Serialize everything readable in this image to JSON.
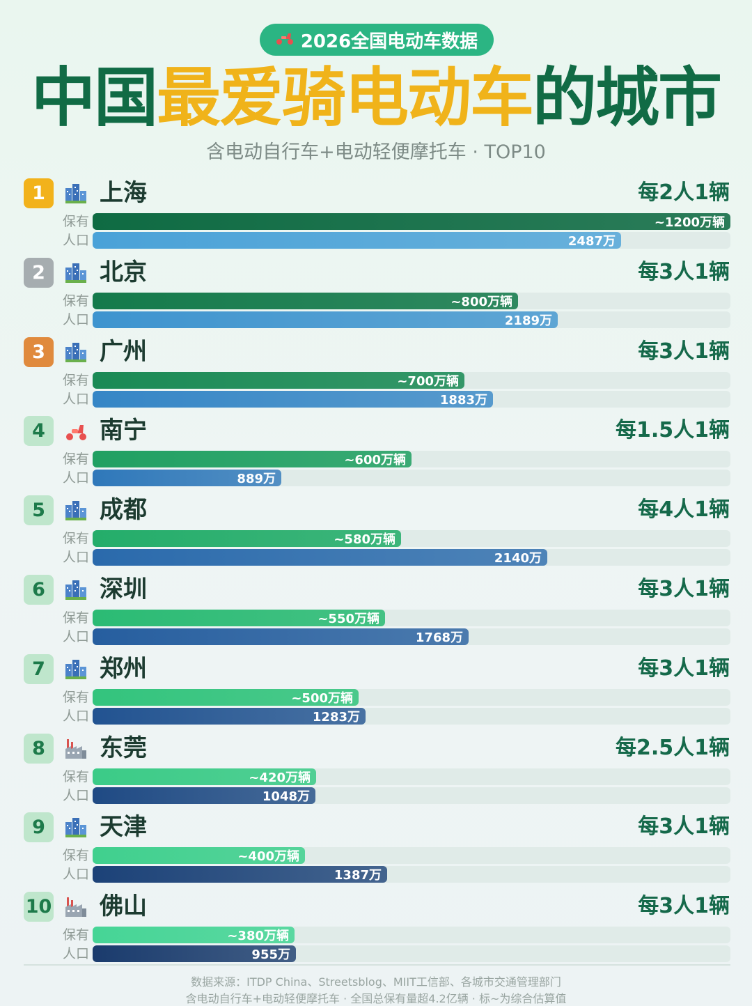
{
  "header": {
    "badge_icon": "scooter-icon",
    "badge_text": "2026全国电动车数据",
    "title_part1": "中国",
    "title_part2": "最爱骑电动车",
    "title_part3": "的城市",
    "subtitle": "含电动自行车+电动轻便摩托车 · TOP10"
  },
  "colors": {
    "title_green": "#116b45",
    "title_yellow": "#f0b31a",
    "badge_green": "#2bb583"
  },
  "series_labels": {
    "ownership": "保有",
    "population": "人口"
  },
  "chart_data": {
    "type": "bar",
    "title": "中国最爱骑电动车的城市",
    "subtitle": "含电动自行车+电动轻便摩托车 · TOP10",
    "categories": [
      "上海",
      "北京",
      "广州",
      "南宁",
      "成都",
      "深圳",
      "郑州",
      "东莞",
      "天津",
      "佛山"
    ],
    "series": [
      {
        "name": "保有",
        "values": [
          1200,
          800,
          700,
          600,
          580,
          550,
          500,
          420,
          400,
          380
        ]
      },
      {
        "name": "人口",
        "values": [
          2487,
          2189,
          1883,
          889,
          2140,
          1768,
          1283,
          1048,
          1387,
          955
        ]
      }
    ],
    "ownership_max": 1200,
    "population_max": 3000,
    "rows": [
      {
        "rank": "1",
        "city": "上海",
        "icon": "cityscape-icon",
        "ratio": "每2人1辆",
        "own_label": "~1200万辆",
        "pop_label": "2487万"
      },
      {
        "rank": "2",
        "city": "北京",
        "icon": "cityscape-icon",
        "ratio": "每3人1辆",
        "own_label": "~800万辆",
        "pop_label": "2189万"
      },
      {
        "rank": "3",
        "city": "广州",
        "icon": "cityscape-icon",
        "ratio": "每3人1辆",
        "own_label": "~700万辆",
        "pop_label": "1883万"
      },
      {
        "rank": "4",
        "city": "南宁",
        "icon": "scooter-icon",
        "ratio": "每1.5人1辆",
        "own_label": "~600万辆",
        "pop_label": "889万"
      },
      {
        "rank": "5",
        "city": "成都",
        "icon": "cityscape-icon",
        "ratio": "每4人1辆",
        "own_label": "~580万辆",
        "pop_label": "2140万"
      },
      {
        "rank": "6",
        "city": "深圳",
        "icon": "cityscape-icon",
        "ratio": "每3人1辆",
        "own_label": "~550万辆",
        "pop_label": "1768万"
      },
      {
        "rank": "7",
        "city": "郑州",
        "icon": "cityscape-icon",
        "ratio": "每3人1辆",
        "own_label": "~500万辆",
        "pop_label": "1283万"
      },
      {
        "rank": "8",
        "city": "东莞",
        "icon": "factory-icon",
        "ratio": "每2.5人1辆",
        "own_label": "~420万辆",
        "pop_label": "1048万"
      },
      {
        "rank": "9",
        "city": "天津",
        "icon": "cityscape-icon",
        "ratio": "每3人1辆",
        "own_label": "~400万辆",
        "pop_label": "1387万"
      },
      {
        "rank": "10",
        "city": "佛山",
        "icon": "factory-icon",
        "ratio": "每3人1辆",
        "own_label": "~380万辆",
        "pop_label": "955万"
      }
    ]
  },
  "footer": {
    "line1": "数据来源：ITDP China、Streetsblog、MIIT工信部、各城市交通管理部门",
    "line2": "含电动自行车+电动轻便摩托车 · 全国总保有量超4.2亿辆 · 标~为综合估算值"
  }
}
